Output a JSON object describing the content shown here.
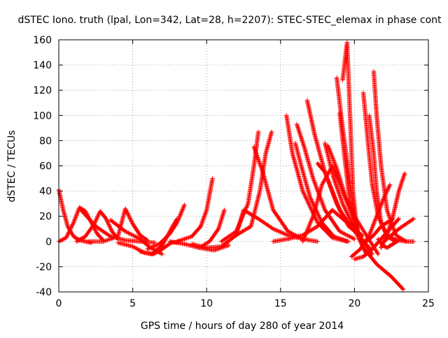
{
  "chart_data": {
    "type": "scatter",
    "title": "dSTEC Iono. truth (lpal, Lon=342, Lat=28, h=2207): STEC-STEC_elemax in phase cont",
    "xlabel": "GPS time / hours of day 280 of year 2014",
    "ylabel": "dSTEC  / TECUs",
    "xlim": [
      0,
      25
    ],
    "ylim": [
      -40,
      160
    ],
    "xticks": [
      0,
      5,
      10,
      15,
      20,
      25
    ],
    "yticks": [
      -40,
      -20,
      0,
      20,
      40,
      60,
      80,
      100,
      120,
      140,
      160
    ],
    "grid": true,
    "marker": "+",
    "color": "#ff0000",
    "series": [
      {
        "x": [
          0.0,
          0.3,
          0.6,
          1.0,
          1.4,
          1.8,
          2.2
        ],
        "y": [
          41,
          25,
          12,
          4,
          1,
          0,
          -1
        ]
      },
      {
        "x": [
          0.0,
          0.5,
          1.0,
          1.4,
          1.8,
          2.2,
          2.6,
          3.0
        ],
        "y": [
          0,
          3,
          15,
          27,
          24,
          15,
          6,
          1
        ]
      },
      {
        "x": [
          1.2,
          1.8,
          2.4,
          2.8,
          3.2,
          3.6,
          4.0
        ],
        "y": [
          0,
          4,
          14,
          24,
          18,
          8,
          2
        ]
      },
      {
        "x": [
          1.5,
          2.5,
          3.5,
          4.5,
          5.5,
          6.5
        ],
        "y": [
          25,
          12,
          4,
          1,
          0,
          -1
        ]
      },
      {
        "x": [
          2.0,
          3.0,
          4.0,
          4.5,
          5.0,
          5.5,
          6.0
        ],
        "y": [
          0,
          0,
          4,
          26,
          14,
          5,
          1
        ]
      },
      {
        "x": [
          3.5,
          4.5,
          5.5,
          6.2,
          7.0
        ],
        "y": [
          17,
          8,
          2,
          -5,
          -10
        ]
      },
      {
        "x": [
          4.0,
          5.0,
          5.8,
          6.4,
          7.0,
          7.6,
          8.2
        ],
        "y": [
          -1,
          -4,
          -9,
          -10,
          -6,
          -1,
          0
        ]
      },
      {
        "x": [
          5.5,
          6.3,
          7.0,
          7.6,
          8.0
        ],
        "y": [
          -8,
          -10,
          -3,
          10,
          18
        ]
      },
      {
        "x": [
          6.0,
          6.8,
          7.5,
          8.0,
          8.5
        ],
        "y": [
          -6,
          -2,
          6,
          15,
          29
        ]
      },
      {
        "x": [
          7.5,
          8.5,
          9.5,
          10.5,
          11.5
        ],
        "y": [
          0,
          -2,
          -5,
          -7,
          -3
        ]
      },
      {
        "x": [
          8.0,
          9.0,
          9.6,
          10.0,
          10.4
        ],
        "y": [
          0,
          4,
          12,
          25,
          50
        ]
      },
      {
        "x": [
          9.5,
          10.2,
          10.8,
          11.2
        ],
        "y": [
          -5,
          0,
          10,
          25
        ]
      },
      {
        "x": [
          9.0,
          10.0,
          11.0,
          12.0,
          12.5
        ],
        "y": [
          -2,
          -5,
          -4,
          5,
          25
        ]
      },
      {
        "x": [
          11.0,
          12.0,
          12.8,
          13.2,
          13.5
        ],
        "y": [
          0,
          8,
          30,
          60,
          87
        ]
      },
      {
        "x": [
          12.0,
          13.0,
          13.6,
          14.0,
          14.4
        ],
        "y": [
          5,
          12,
          40,
          70,
          87
        ]
      },
      {
        "x": [
          13.2,
          13.8,
          14.5,
          15.5,
          16.5,
          17.5
        ],
        "y": [
          75,
          55,
          25,
          8,
          2,
          0
        ]
      },
      {
        "x": [
          12.5,
          13.5,
          14.5,
          15.5,
          16.5
        ],
        "y": [
          25,
          18,
          10,
          5,
          2
        ]
      },
      {
        "x": [
          15.4,
          15.8,
          16.5,
          17.5,
          18.5,
          19.5
        ],
        "y": [
          100,
          70,
          40,
          15,
          3,
          0
        ]
      },
      {
        "x": [
          16.0,
          16.4,
          17.0,
          17.8,
          18.6,
          19.6
        ],
        "y": [
          78,
          60,
          35,
          15,
          4,
          0
        ]
      },
      {
        "x": [
          16.1,
          16.6,
          17.2,
          18.0,
          19.0,
          20.0
        ],
        "y": [
          93,
          75,
          50,
          25,
          8,
          2
        ]
      },
      {
        "x": [
          16.8,
          17.3,
          18.0,
          18.8,
          19.6,
          20.5
        ],
        "y": [
          112,
          85,
          55,
          30,
          12,
          4
        ]
      },
      {
        "x": [
          16.5,
          17.2,
          17.8,
          18.5,
          19.2,
          20.2
        ],
        "y": [
          0,
          20,
          45,
          60,
          40,
          10
        ]
      },
      {
        "x": [
          17.5,
          18.0,
          18.5,
          19.0,
          20.0,
          21.0
        ],
        "y": [
          62,
          55,
          40,
          25,
          8,
          -5
        ]
      },
      {
        "x": [
          18.0,
          18.6,
          19.2,
          19.8,
          20.5,
          21.2
        ],
        "y": [
          78,
          50,
          30,
          15,
          2,
          -10
        ]
      },
      {
        "x": [
          18.2,
          18.8,
          19.4,
          20.0,
          20.8,
          21.6
        ],
        "y": [
          76,
          58,
          35,
          20,
          5,
          -10
        ]
      },
      {
        "x": [
          18.8,
          19.2,
          19.6,
          20.0,
          20.4
        ],
        "y": [
          130,
          90,
          55,
          20,
          0
        ]
      },
      {
        "x": [
          19.0,
          19.3,
          19.6,
          20.0,
          20.6,
          21.5,
          22.5,
          23.3
        ],
        "y": [
          102,
          70,
          40,
          15,
          -5,
          -18,
          -28,
          -38
        ]
      },
      {
        "x": [
          19.2,
          19.5,
          19.7,
          19.9,
          20.2,
          20.8
        ],
        "y": [
          128,
          158,
          100,
          40,
          5,
          -10
        ]
      },
      {
        "x": [
          20.6,
          20.9,
          21.2,
          21.6,
          22.2,
          22.8
        ],
        "y": [
          118,
          80,
          45,
          20,
          5,
          1
        ]
      },
      {
        "x": [
          21.0,
          21.3,
          21.5,
          21.8,
          22.2,
          22.8
        ],
        "y": [
          100,
          70,
          40,
          15,
          4,
          0
        ]
      },
      {
        "x": [
          21.3,
          21.5,
          21.8,
          22.2,
          22.8,
          23.5
        ],
        "y": [
          135,
          100,
          60,
          25,
          5,
          0
        ]
      },
      {
        "x": [
          19.8,
          20.4,
          21.0,
          21.5,
          22.0,
          22.4
        ],
        "y": [
          -12,
          -6,
          5,
          20,
          35,
          45
        ]
      },
      {
        "x": [
          20.0,
          20.6,
          21.2,
          21.8,
          22.4,
          23.0
        ],
        "y": [
          -14,
          -12,
          -6,
          2,
          10,
          18
        ]
      },
      {
        "x": [
          21.8,
          22.2,
          22.6,
          23.0,
          23.4
        ],
        "y": [
          -5,
          5,
          20,
          40,
          54
        ]
      },
      {
        "x": [
          22.0,
          22.5,
          23.0,
          23.5,
          24.0
        ],
        "y": [
          0,
          5,
          10,
          14,
          18
        ]
      },
      {
        "x": [
          20.8,
          21.3,
          21.8,
          22.2,
          22.6
        ],
        "y": [
          0,
          5,
          12,
          15,
          18
        ]
      },
      {
        "x": [
          14.5,
          15.5,
          16.5,
          17.5,
          18.5,
          19.5,
          20.5
        ],
        "y": [
          0,
          2,
          5,
          12,
          25,
          15,
          5
        ]
      },
      {
        "x": [
          21.6,
          21.9,
          22.2,
          22.6,
          23.0
        ],
        "y": [
          2,
          -3,
          -5,
          -2,
          1
        ]
      },
      {
        "x": [
          22.5,
          23.0,
          23.5,
          24.0
        ],
        "y": [
          2,
          1,
          0,
          0
        ]
      }
    ]
  }
}
